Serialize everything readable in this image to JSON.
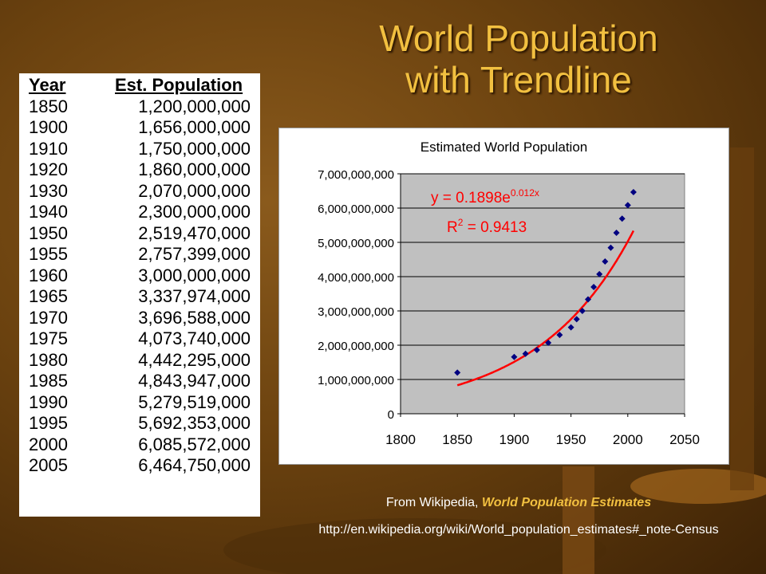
{
  "slide": {
    "title_line1": "World Population",
    "title_line2": "with Trendline",
    "caption_prefix": "From Wikipedia, ",
    "caption_source": "World Population Estimates",
    "url": "http://en.wikipedia.org/wiki/World_population_estimates#_note-Census"
  },
  "table": {
    "headers": [
      "Year",
      "Est. Population"
    ],
    "rows": [
      [
        "1850",
        "1,200,000,000"
      ],
      [
        "1900",
        "1,656,000,000"
      ],
      [
        "1910",
        "1,750,000,000"
      ],
      [
        "1920",
        "1,860,000,000"
      ],
      [
        "1930",
        "2,070,000,000"
      ],
      [
        "1940",
        "2,300,000,000"
      ],
      [
        "1950",
        "2,519,470,000"
      ],
      [
        "1955",
        "2,757,399,000"
      ],
      [
        "1960",
        "3,000,000,000"
      ],
      [
        "1965",
        "3,337,974,000"
      ],
      [
        "1970",
        "3,696,588,000"
      ],
      [
        "1975",
        "4,073,740,000"
      ],
      [
        "1980",
        "4,442,295,000"
      ],
      [
        "1985",
        "4,843,947,000"
      ],
      [
        "1990",
        "5,279,519,000"
      ],
      [
        "1995",
        "5,692,353,000"
      ],
      [
        "2000",
        "6,085,572,000"
      ],
      [
        "2005",
        "6,464,750,000"
      ]
    ]
  },
  "colors": {
    "title": "#f2c040",
    "plot_background": "#c0c0c0",
    "marker": "#000080",
    "trendline": "#ff0000"
  },
  "chart_data": {
    "type": "scatter",
    "title": "Estimated World Population",
    "xlabel": "",
    "ylabel": "",
    "xlim": [
      1800,
      2050
    ],
    "ylim": [
      0,
      7000000000
    ],
    "xticks": [
      "1800",
      "1850",
      "1900",
      "1950",
      "2000",
      "2050"
    ],
    "yticks": [
      "0",
      "1,000,000,000",
      "2,000,000,000",
      "3,000,000,000",
      "4,000,000,000",
      "5,000,000,000",
      "6,000,000,000",
      "7,000,000,000"
    ],
    "grid": true,
    "legend": "none",
    "series": [
      {
        "x": [
          1850,
          1900,
          1910,
          1920,
          1930,
          1940,
          1950,
          1955,
          1960,
          1965,
          1970,
          1975,
          1980,
          1985,
          1990,
          1995,
          2000,
          2005
        ],
        "values": [
          1200000000,
          1656000000,
          1750000000,
          1860000000,
          2070000000,
          2300000000,
          2519470000,
          2757399000,
          3000000000,
          3337974000,
          3696588000,
          4073740000,
          4442295000,
          4843947000,
          5279519000,
          5692353000,
          6085572000,
          6464750000
        ]
      }
    ],
    "trendline": {
      "type": "exponential",
      "coefficient": 0.1898,
      "rate": 0.012,
      "x_range": [
        1850,
        2005
      ],
      "equation_main": "y = 0.1898e",
      "equation_exp": "0.012x",
      "r2_label": "R",
      "r2_sup": "2",
      "r2_value": " = 0.9413"
    }
  }
}
